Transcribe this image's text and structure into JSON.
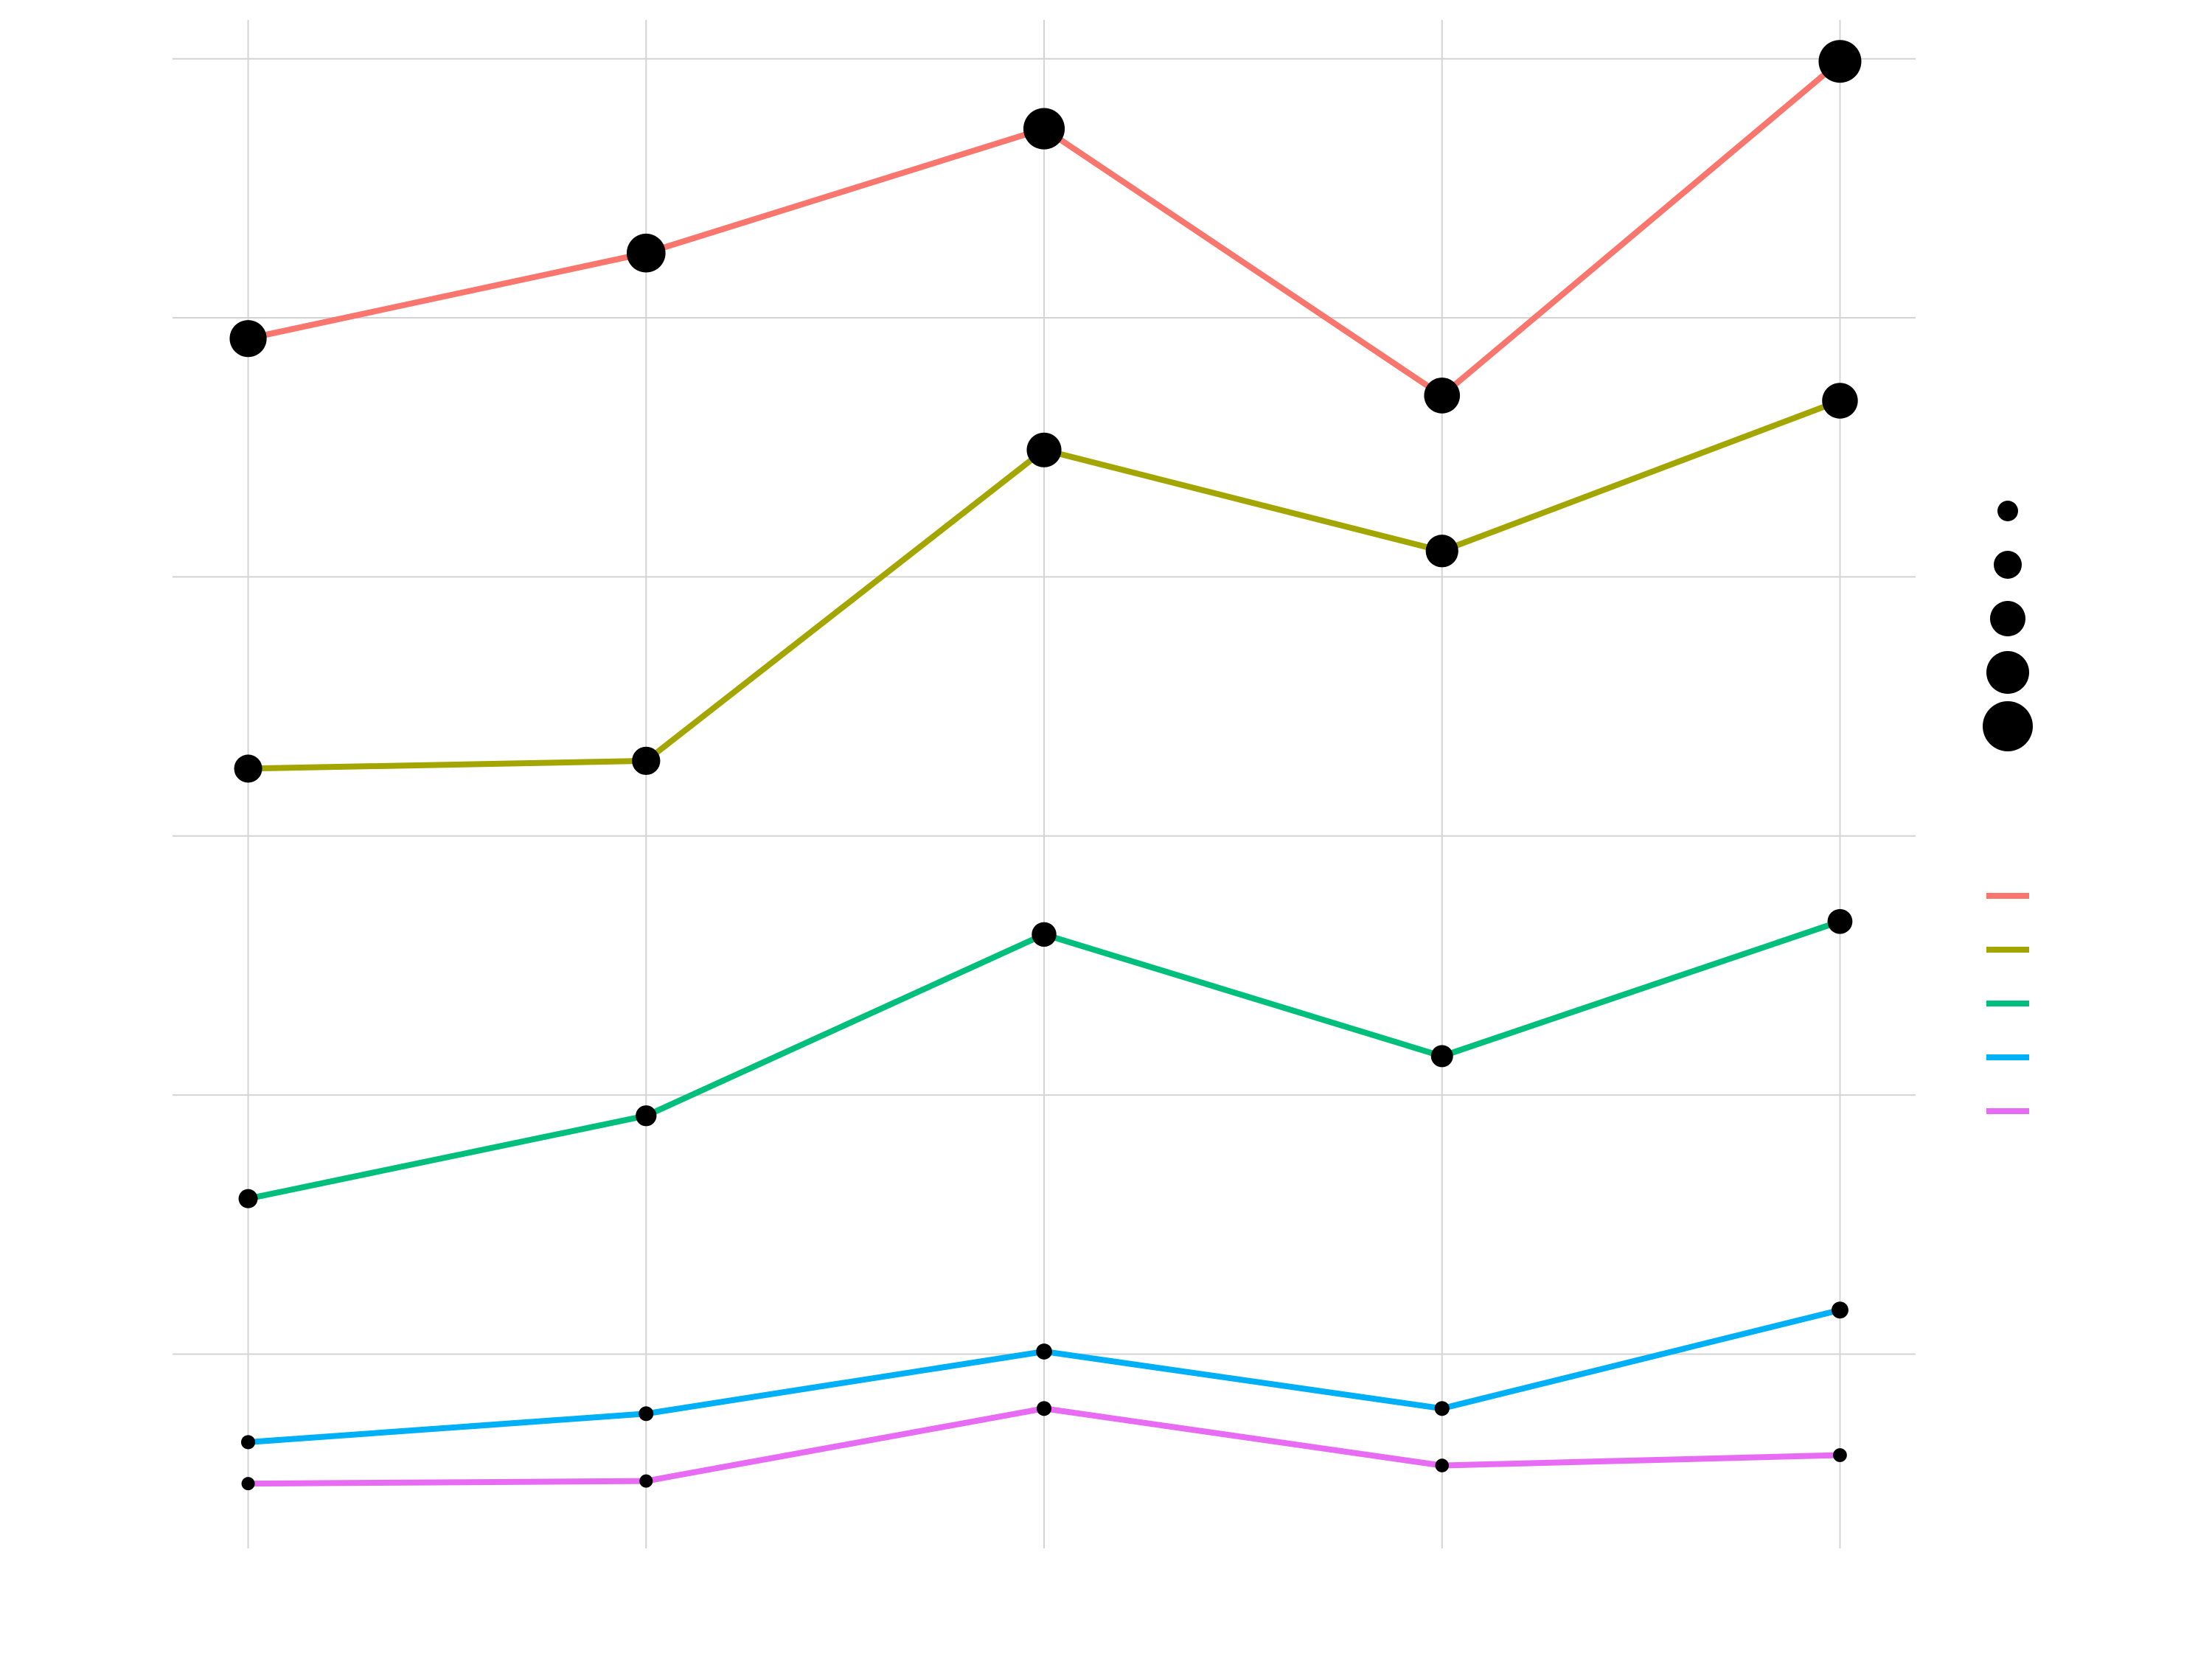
{
  "chart_data": {
    "type": "line",
    "title": "",
    "xlabel": "",
    "ylabel": "",
    "x": [
      1,
      2,
      3,
      4,
      5
    ],
    "xlim": [
      0.81,
      5.19
    ],
    "ylim": [
      -0.75,
      5.15
    ],
    "x_gridlines": [
      1,
      2,
      3,
      4,
      5
    ],
    "y_gridlines": [
      0,
      1,
      2,
      3,
      4,
      5
    ],
    "grid": true,
    "legend_position": "right",
    "point_color": "#000000",
    "series": [
      {
        "color": "#F8766D",
        "values": [
          3.92,
          4.25,
          4.73,
          3.7,
          4.99
        ]
      },
      {
        "color": "#A3A500",
        "values": [
          2.26,
          2.29,
          3.49,
          3.1,
          3.68
        ]
      },
      {
        "color": "#00BF7D",
        "values": [
          0.6,
          0.92,
          1.62,
          1.15,
          1.67
        ]
      },
      {
        "color": "#00B0F6",
        "values": [
          -0.34,
          -0.23,
          0.01,
          -0.21,
          0.17
        ]
      },
      {
        "color": "#E76BF3",
        "values": [
          -0.5,
          -0.49,
          -0.21,
          -0.43,
          -0.39
        ]
      }
    ],
    "size_legend_steps": 5,
    "color_legend_entries": 5
  }
}
